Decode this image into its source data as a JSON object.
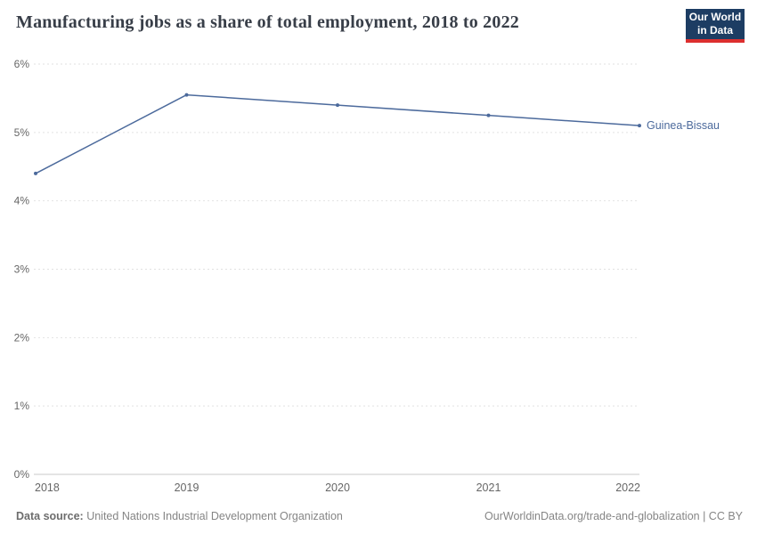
{
  "header": {
    "title": "Manufacturing jobs as a share of total employment, 2018 to 2022",
    "logo": {
      "line1": "Our World",
      "line2": "in Data"
    }
  },
  "chart_data": {
    "type": "line",
    "x": [
      2018,
      2019,
      2020,
      2021,
      2022
    ],
    "x_ticks": [
      2018,
      2019,
      2020,
      2021,
      2022
    ],
    "series": [
      {
        "name": "Guinea-Bissau",
        "values": [
          4.4,
          5.55,
          5.4,
          5.25,
          5.1
        ],
        "color": "#4c6a9c"
      }
    ],
    "title": "Manufacturing jobs as a share of total employment, 2018 to 2022",
    "xlabel": "",
    "ylabel": "",
    "ylim": [
      0,
      6
    ],
    "y_ticks": [
      0,
      1,
      2,
      3,
      4,
      5,
      6
    ],
    "y_tick_suffix": "%",
    "grid": "horizontal-dashed",
    "legend_position": "end-of-line-label"
  },
  "footer": {
    "datasource_label": "Data source:",
    "datasource_value": " United Nations Industrial Development Organization",
    "rights": "OurWorldinData.org/trade-and-globalization | CC BY"
  },
  "colors": {
    "line": "#4c6a9c",
    "grid": "#e2e2e2",
    "axis": "#c8c8c8",
    "tick_label": "#666666",
    "title": "#383e48",
    "footer": "#858585",
    "logo_bg": "#1d3d63",
    "logo_accent": "#dc2f2f"
  }
}
